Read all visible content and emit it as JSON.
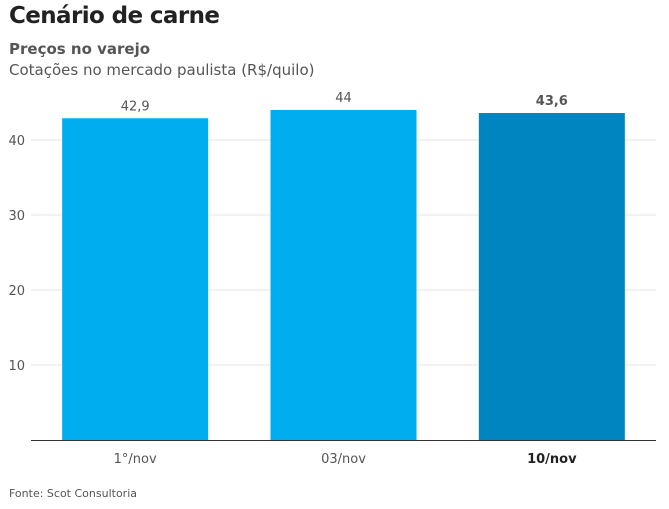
{
  "header": {
    "title": "Cenário de carne",
    "subtitle": "Preços no varejo",
    "caption": "Cotações no mercado paulista (R$/quilo)"
  },
  "footer": {
    "source": "Fonte: Scot Consultoria"
  },
  "chart_data": {
    "type": "bar",
    "title": "Preços no varejo",
    "subtitle": "Cotações no mercado paulista (R$/quilo)",
    "categories": [
      "1°/nov",
      "03/nov",
      "10/nov"
    ],
    "values": [
      42.9,
      44,
      43.6
    ],
    "value_labels": [
      "42,9",
      "44",
      "43,6"
    ],
    "highlight_index": 2,
    "ylim": [
      0,
      46
    ],
    "yticks": [
      10,
      20,
      30,
      40
    ],
    "ytick_labels": [
      "10",
      "20",
      "30",
      "40"
    ],
    "grid": true,
    "legend": "none",
    "colors": {
      "bar": "#00aeef",
      "bar_highlight": "#0085c0",
      "grid": "#e6e6e6",
      "axis": "#333333",
      "text": "#555555"
    }
  }
}
